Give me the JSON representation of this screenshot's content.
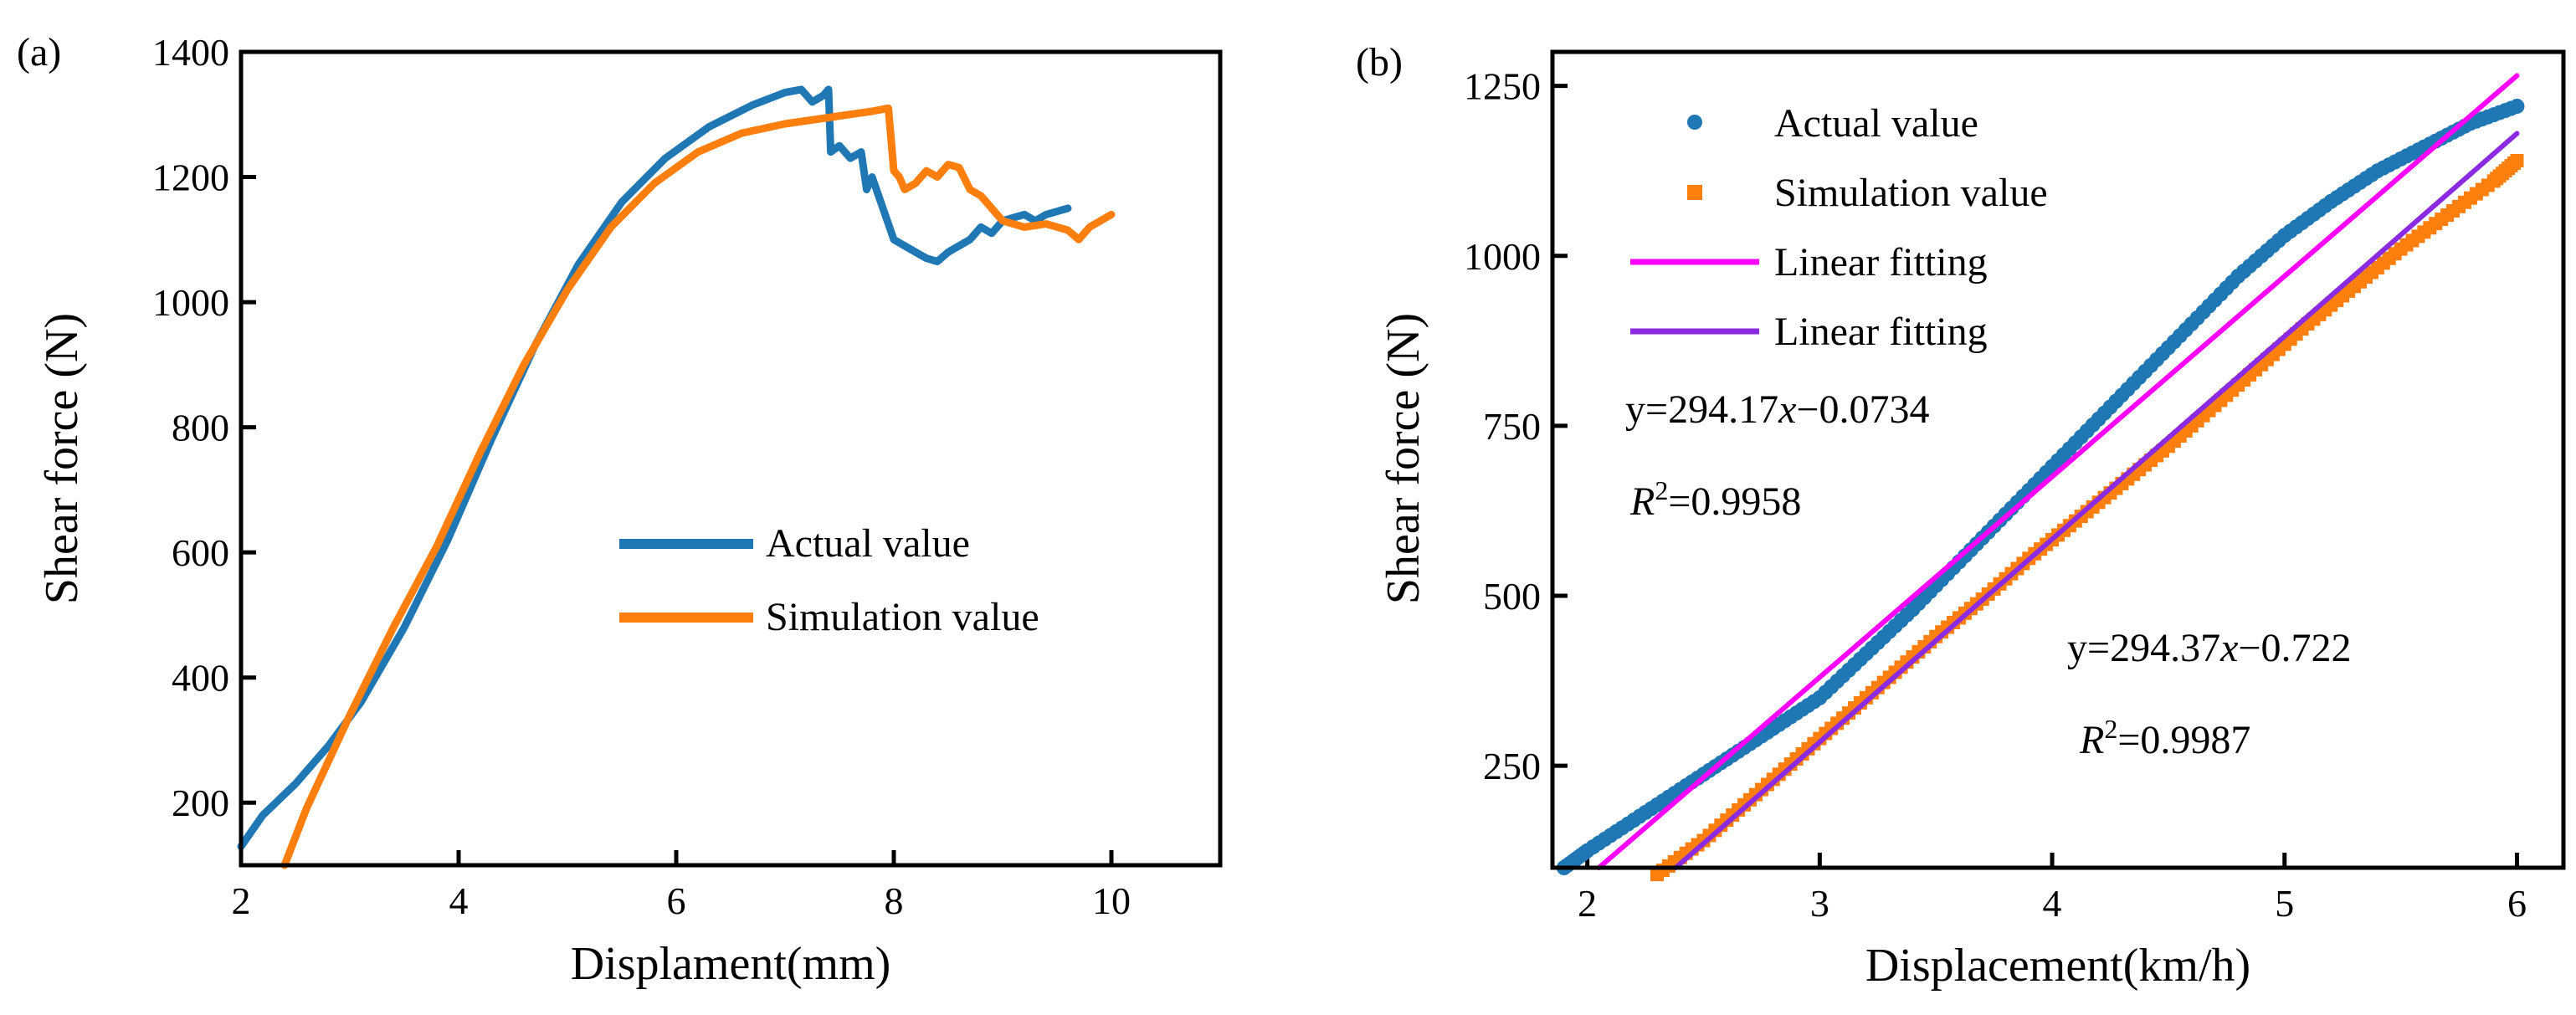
{
  "figure": {
    "colors": {
      "actual": "#1f77b4",
      "simulation": "#ff7f0e",
      "fit1": "#ff00ff",
      "fit2": "#8a2be2",
      "axis": "#000000"
    }
  },
  "chart_data": [
    {
      "panel_label": "(a)",
      "type": "line",
      "title": "",
      "xlabel": "Displament(mm)",
      "ylabel": "Shear force (N)",
      "xlim": [
        2,
        11
      ],
      "ylim": [
        100,
        1400
      ],
      "xticks": [
        2,
        4,
        6,
        8,
        10
      ],
      "yticks": [
        200,
        400,
        600,
        800,
        1000,
        1200,
        1400
      ],
      "legend_position": "center-right",
      "series": [
        {
          "name": "Actual value",
          "x": [
            2.0,
            2.2,
            2.5,
            2.8,
            3.1,
            3.5,
            3.9,
            4.3,
            4.7,
            5.1,
            5.5,
            5.9,
            6.3,
            6.7,
            7.0,
            7.15,
            7.25,
            7.35,
            7.4,
            7.42,
            7.5,
            7.6,
            7.7,
            7.75,
            7.8,
            7.9,
            8.0,
            8.1,
            8.2,
            8.3,
            8.4,
            8.5,
            8.6,
            8.7,
            8.8,
            8.9,
            9.0,
            9.1,
            9.2,
            9.3,
            9.4,
            9.5,
            9.6
          ],
          "y": [
            130,
            180,
            230,
            290,
            360,
            480,
            620,
            780,
            930,
            1060,
            1160,
            1230,
            1280,
            1315,
            1335,
            1340,
            1320,
            1330,
            1340,
            1240,
            1250,
            1230,
            1240,
            1180,
            1200,
            1150,
            1100,
            1090,
            1080,
            1070,
            1065,
            1080,
            1090,
            1100,
            1120,
            1110,
            1130,
            1135,
            1140,
            1130,
            1140,
            1145,
            1150
          ]
        },
        {
          "name": "Simulation value",
          "x": [
            2.4,
            2.6,
            3.0,
            3.4,
            3.8,
            4.2,
            4.6,
            5.0,
            5.4,
            5.8,
            6.2,
            6.6,
            7.0,
            7.4,
            7.8,
            7.95,
            8.0,
            8.05,
            8.1,
            8.2,
            8.3,
            8.4,
            8.5,
            8.6,
            8.7,
            8.8,
            8.9,
            9.0,
            9.2,
            9.4,
            9.6,
            9.7,
            9.8,
            10.0
          ],
          "y": [
            100,
            190,
            340,
            480,
            610,
            760,
            900,
            1020,
            1120,
            1190,
            1240,
            1270,
            1285,
            1295,
            1305,
            1310,
            1210,
            1200,
            1180,
            1190,
            1210,
            1200,
            1220,
            1215,
            1180,
            1170,
            1150,
            1130,
            1120,
            1125,
            1115,
            1100,
            1120,
            1140
          ]
        }
      ]
    },
    {
      "panel_label": "(b)",
      "type": "scatter",
      "title": "",
      "xlabel": "Displacement(km/h)",
      "ylabel": "Shear force (N)",
      "xlim": [
        1.85,
        6.2
      ],
      "ylim": [
        100,
        1300
      ],
      "xticks": [
        2,
        3,
        4,
        5,
        6
      ],
      "yticks": [
        250,
        500,
        750,
        1000,
        1250
      ],
      "legend_position": "top-left",
      "series": [
        {
          "name": "Actual value",
          "marker": "circle",
          "x": [
            1.9,
            2.0,
            2.2,
            2.4,
            2.6,
            2.8,
            3.0,
            3.2,
            3.4,
            3.6,
            3.8,
            4.0,
            4.2,
            4.4,
            4.6,
            4.8,
            5.0,
            5.2,
            5.4,
            5.6,
            5.8,
            6.0
          ],
          "y": [
            100,
            125,
            170,
            215,
            260,
            305,
            350,
            415,
            480,
            550,
            620,
            690,
            760,
            830,
            900,
            970,
            1030,
            1080,
            1125,
            1160,
            1195,
            1220
          ]
        },
        {
          "name": "Simulation value",
          "marker": "square",
          "x": [
            2.3,
            2.5,
            2.7,
            2.9,
            3.1,
            3.3,
            3.5,
            3.7,
            3.9,
            4.1,
            4.3,
            4.5,
            4.7,
            4.9,
            5.1,
            5.3,
            5.5,
            5.7,
            5.9,
            6.0
          ],
          "y": [
            90,
            140,
            200,
            260,
            320,
            380,
            440,
            495,
            555,
            610,
            665,
            720,
            780,
            840,
            900,
            955,
            1010,
            1060,
            1110,
            1140
          ]
        },
        {
          "name": "Linear fitting",
          "type": "line",
          "x": [
            2.05,
            6.0
          ],
          "y": [
            100,
            1265
          ]
        },
        {
          "name": "Linear fitting",
          "type": "line",
          "x": [
            2.38,
            6.0
          ],
          "y": [
            100,
            1180
          ]
        }
      ],
      "annotations": [
        {
          "id": "eq1",
          "lines": [
            {
              "parts": [
                {
                  "t": "y=294.17",
                  "i": false
                },
                {
                  "t": "x",
                  "i": true
                },
                {
                  "t": "−0.0734",
                  "i": false
                }
              ]
            },
            {
              "parts": [
                {
                  "t": "R",
                  "i": true
                },
                {
                  "t": "2",
                  "i": false,
                  "sup": true
                },
                {
                  "t": "=0.9958",
                  "i": false
                }
              ]
            }
          ]
        },
        {
          "id": "eq2",
          "lines": [
            {
              "parts": [
                {
                  "t": "y=294.37",
                  "i": false
                },
                {
                  "t": "x",
                  "i": true
                },
                {
                  "t": "−0.722",
                  "i": false
                }
              ]
            },
            {
              "parts": [
                {
                  "t": "R",
                  "i": true
                },
                {
                  "t": "2",
                  "i": false,
                  "sup": true
                },
                {
                  "t": "=0.9987",
                  "i": false
                }
              ]
            }
          ]
        }
      ]
    }
  ]
}
